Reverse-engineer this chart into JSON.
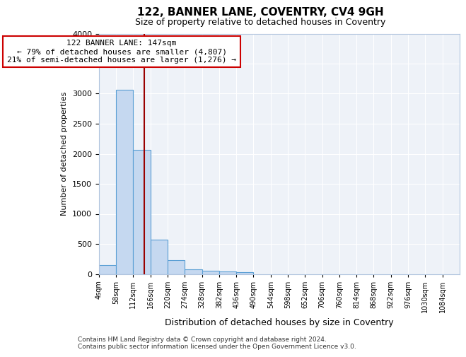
{
  "title1": "122, BANNER LANE, COVENTRY, CV4 9GH",
  "title2": "Size of property relative to detached houses in Coventry",
  "xlabel": "Distribution of detached houses by size in Coventry",
  "ylabel": "Number of detached properties",
  "bin_edges": [
    4,
    58,
    112,
    166,
    220,
    274,
    328,
    382,
    436,
    490,
    544,
    598,
    652,
    706,
    760,
    814,
    868,
    922,
    976,
    1030,
    1084
  ],
  "bar_heights": [
    150,
    3060,
    2060,
    570,
    230,
    80,
    55,
    45,
    30,
    0,
    0,
    0,
    0,
    0,
    0,
    0,
    0,
    0,
    0,
    0
  ],
  "bar_color": "#c5d8f0",
  "bar_edge_color": "#5a9fd4",
  "property_size": 147,
  "annotation_line1": "122 BANNER LANE: 147sqm",
  "annotation_line2": "← 79% of detached houses are smaller (4,807)",
  "annotation_line3": "21% of semi-detached houses are larger (1,276) →",
  "annotation_box_color": "#cc0000",
  "vline_color": "#990000",
  "background_color": "#eef2f8",
  "ylim": [
    0,
    4000
  ],
  "footnote1": "Contains HM Land Registry data © Crown copyright and database right 2024.",
  "footnote2": "Contains public sector information licensed under the Open Government Licence v3.0.",
  "tick_labels": [
    "4sqm",
    "58sqm",
    "112sqm",
    "166sqm",
    "220sqm",
    "274sqm",
    "328sqm",
    "382sqm",
    "436sqm",
    "490sqm",
    "544sqm",
    "598sqm",
    "652sqm",
    "706sqm",
    "760sqm",
    "814sqm",
    "868sqm",
    "922sqm",
    "976sqm",
    "1030sqm",
    "1084sqm"
  ],
  "title1_fontsize": 11,
  "title2_fontsize": 9,
  "ylabel_fontsize": 8,
  "xlabel_fontsize": 9
}
